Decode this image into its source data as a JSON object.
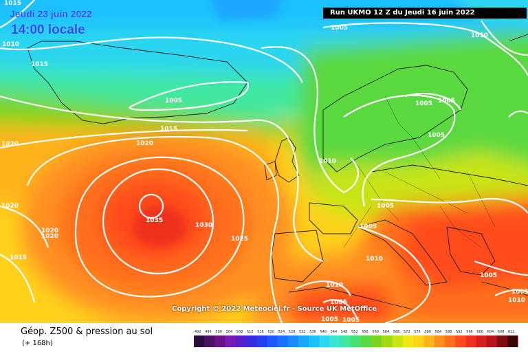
{
  "map": {
    "date_title": "Jeudi 23 juin 2022",
    "time_title": "14:00 locale",
    "run_info": "Run UKMO 12 Z du Jeudi 16 juin 2022",
    "copyright": "Copyright © 2022 Meteociel.fr - Source UK MetOffice",
    "isobar_labels": [
      {
        "text": "1015"
      },
      {
        "text": "1010"
      },
      {
        "text": "1015"
      },
      {
        "text": "1005"
      },
      {
        "text": "1010"
      },
      {
        "text": "1005"
      },
      {
        "text": "1015"
      },
      {
        "text": "1020"
      },
      {
        "text": "1020"
      },
      {
        "text": "1020"
      },
      {
        "text": "1020"
      },
      {
        "text": "1020"
      },
      {
        "text": "1015"
      },
      {
        "text": "1035"
      },
      {
        "text": "1030"
      },
      {
        "text": "1025"
      },
      {
        "text": "1010"
      },
      {
        "text": "1005"
      },
      {
        "text": "1005"
      },
      {
        "text": "1005"
      },
      {
        "text": "1005"
      },
      {
        "text": "1005"
      },
      {
        "text": "1010"
      },
      {
        "text": "1010"
      },
      {
        "text": "1005"
      },
      {
        "text": "1005"
      },
      {
        "text": "1005"
      },
      {
        "text": "1005"
      },
      {
        "text": "1005"
      },
      {
        "text": "1010"
      }
    ]
  },
  "footer": {
    "product_title": "Géop. Z500 & pression au sol",
    "forecast_range": "(+ 168h)"
  },
  "legend": {
    "values": [
      "492",
      "496",
      "500",
      "504",
      "508",
      "512",
      "516",
      "520",
      "524",
      "528",
      "532",
      "536",
      "540",
      "544",
      "548",
      "552",
      "556",
      "560",
      "564",
      "568",
      "572",
      "576",
      "580",
      "584",
      "588",
      "592",
      "596",
      "600",
      "604",
      "608",
      "612"
    ],
    "colors": [
      "#2a0f3c",
      "#4b1160",
      "#6a1088",
      "#7a18b4",
      "#5a1ec8",
      "#3a2ae0",
      "#2440f0",
      "#1c58ff",
      "#1a72ff",
      "#1a8cff",
      "#1aa6ff",
      "#1ac0ff",
      "#2ad6f0",
      "#3ae6d2",
      "#40e8a0",
      "#48e070",
      "#5ad840",
      "#7ad41e",
      "#a0da14",
      "#c8e414",
      "#f0e614",
      "#ffd21a",
      "#ffb41e",
      "#ff9020",
      "#ff6e1e",
      "#ff4c1e",
      "#f0301e",
      "#d6201e",
      "#b4141a",
      "#7e0c10",
      "#3c0408"
    ]
  },
  "colors": {
    "title_blue": "#1e4cff",
    "isobar": "#ffffff"
  }
}
